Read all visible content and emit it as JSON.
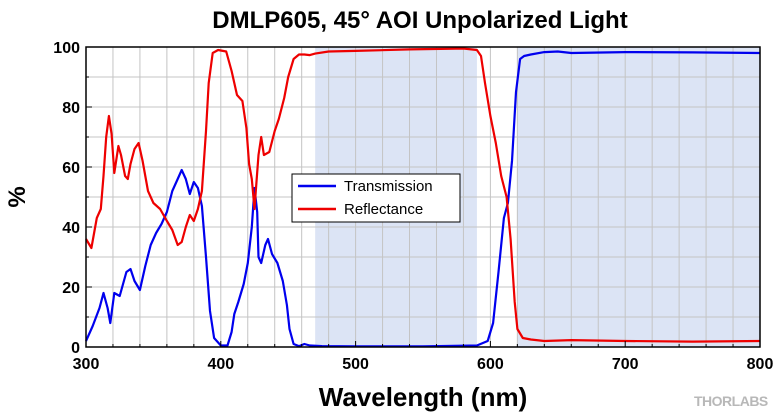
{
  "chart_data": {
    "type": "line",
    "title": "DMLP605, 45° AOI Unpolarized Light",
    "xlabel": "Wavelength (nm)",
    "ylabel": "%",
    "xlim": [
      300,
      800
    ],
    "ylim": [
      0,
      100
    ],
    "xticks": [
      300,
      400,
      500,
      600,
      700,
      800
    ],
    "yticks": [
      0,
      20,
      40,
      60,
      80,
      100
    ],
    "grid": true,
    "legend_position": "center-left",
    "shaded_regions": [
      {
        "x0": 470,
        "x1": 590,
        "color": "#dce4f5"
      },
      {
        "x0": 620,
        "x1": 800,
        "color": "#dce4f5"
      }
    ],
    "series": [
      {
        "name": "Transmission",
        "color": "#0000ee",
        "points": [
          [
            300,
            2
          ],
          [
            305,
            7
          ],
          [
            310,
            13
          ],
          [
            313,
            18
          ],
          [
            316,
            13
          ],
          [
            318,
            8
          ],
          [
            321,
            18
          ],
          [
            325,
            17
          ],
          [
            330,
            25
          ],
          [
            333,
            26
          ],
          [
            336,
            22
          ],
          [
            340,
            19
          ],
          [
            344,
            27
          ],
          [
            348,
            34
          ],
          [
            352,
            38
          ],
          [
            356,
            41
          ],
          [
            360,
            45
          ],
          [
            364,
            52
          ],
          [
            368,
            56
          ],
          [
            371,
            59
          ],
          [
            374,
            56
          ],
          [
            377,
            51
          ],
          [
            380,
            55
          ],
          [
            383,
            53
          ],
          [
            386,
            47
          ],
          [
            389,
            30
          ],
          [
            392,
            12
          ],
          [
            395,
            3
          ],
          [
            400,
            0.5
          ],
          [
            405,
            0.5
          ],
          [
            408,
            5
          ],
          [
            410,
            11
          ],
          [
            413,
            15
          ],
          [
            417,
            21
          ],
          [
            420,
            28
          ],
          [
            423,
            40
          ],
          [
            425,
            53
          ],
          [
            427,
            45
          ],
          [
            428,
            30
          ],
          [
            430,
            28
          ],
          [
            433,
            34
          ],
          [
            435,
            36
          ],
          [
            438,
            31
          ],
          [
            442,
            28
          ],
          [
            446,
            22
          ],
          [
            449,
            14
          ],
          [
            451,
            6
          ],
          [
            454,
            1
          ],
          [
            458,
            0.3
          ],
          [
            462,
            1
          ],
          [
            466,
            0.5
          ],
          [
            475,
            0.3
          ],
          [
            500,
            0.2
          ],
          [
            550,
            0.2
          ],
          [
            590,
            0.5
          ],
          [
            598,
            2
          ],
          [
            602,
            8
          ],
          [
            606,
            25
          ],
          [
            610,
            43
          ],
          [
            613,
            48
          ],
          [
            616,
            62
          ],
          [
            619,
            85
          ],
          [
            622,
            96
          ],
          [
            625,
            97
          ],
          [
            630,
            97.5
          ],
          [
            640,
            98.3
          ],
          [
            650,
            98.5
          ],
          [
            660,
            98
          ],
          [
            700,
            98.3
          ],
          [
            750,
            98.2
          ],
          [
            800,
            98
          ]
        ]
      },
      {
        "name": "Reflectance",
        "color": "#ee0000",
        "points": [
          [
            300,
            36
          ],
          [
            304,
            33
          ],
          [
            308,
            43
          ],
          [
            311,
            46
          ],
          [
            313,
            57
          ],
          [
            315,
            70
          ],
          [
            317,
            77
          ],
          [
            319,
            71
          ],
          [
            321,
            58
          ],
          [
            324,
            67
          ],
          [
            326,
            64
          ],
          [
            329,
            57
          ],
          [
            331,
            56
          ],
          [
            333,
            61
          ],
          [
            336,
            66
          ],
          [
            339,
            68
          ],
          [
            342,
            62
          ],
          [
            346,
            52
          ],
          [
            350,
            48
          ],
          [
            355,
            46
          ],
          [
            360,
            42
          ],
          [
            364,
            39
          ],
          [
            368,
            34
          ],
          [
            371,
            35
          ],
          [
            374,
            40
          ],
          [
            377,
            44
          ],
          [
            380,
            42
          ],
          [
            383,
            46
          ],
          [
            386,
            52
          ],
          [
            389,
            72
          ],
          [
            391,
            88
          ],
          [
            394,
            98
          ],
          [
            398,
            99
          ],
          [
            404,
            98.5
          ],
          [
            408,
            92
          ],
          [
            412,
            84
          ],
          [
            416,
            82
          ],
          [
            419,
            73
          ],
          [
            421,
            61
          ],
          [
            423,
            56
          ],
          [
            425,
            46
          ],
          [
            426,
            52
          ],
          [
            428,
            64
          ],
          [
            430,
            70
          ],
          [
            432,
            64
          ],
          [
            436,
            65
          ],
          [
            440,
            72
          ],
          [
            443,
            76
          ],
          [
            447,
            83
          ],
          [
            450,
            90
          ],
          [
            454,
            96
          ],
          [
            458,
            97.5
          ],
          [
            462,
            97.5
          ],
          [
            466,
            97.3
          ],
          [
            470,
            97.8
          ],
          [
            480,
            98.5
          ],
          [
            500,
            98.7
          ],
          [
            540,
            99.2
          ],
          [
            580,
            99.5
          ],
          [
            590,
            99
          ],
          [
            593,
            97
          ],
          [
            596,
            88
          ],
          [
            600,
            77
          ],
          [
            604,
            68
          ],
          [
            608,
            57
          ],
          [
            612,
            50
          ],
          [
            615,
            36
          ],
          [
            618,
            15
          ],
          [
            620,
            6
          ],
          [
            624,
            3
          ],
          [
            630,
            2.5
          ],
          [
            640,
            2
          ],
          [
            660,
            2.3
          ],
          [
            700,
            2
          ],
          [
            750,
            1.8
          ],
          [
            800,
            2
          ]
        ]
      }
    ]
  }
}
